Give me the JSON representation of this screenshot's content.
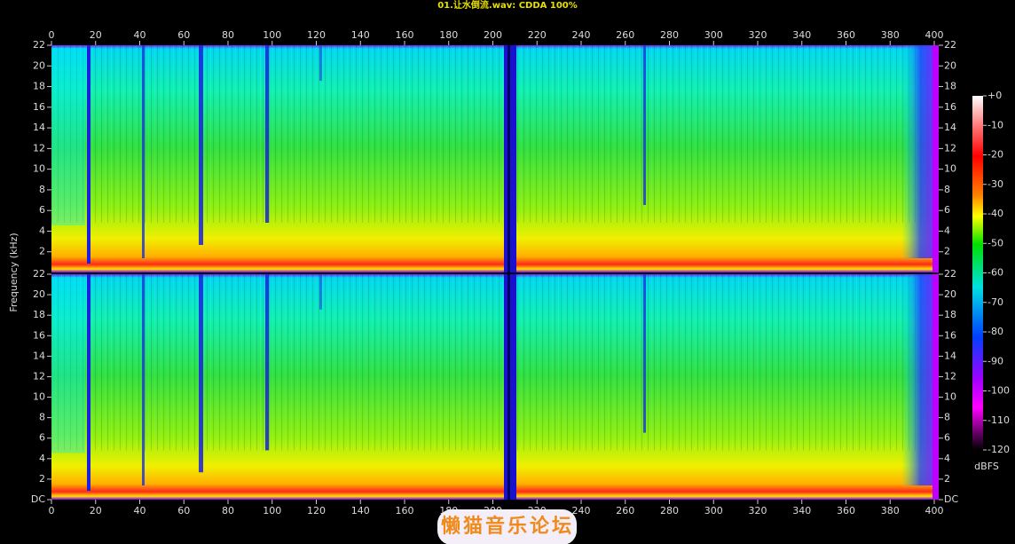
{
  "chart_data": {
    "type": "spectrogram",
    "title": "01.让水倒流.wav: CDDA 100%",
    "ylabel": "Frequency (kHz)",
    "xlim": [
      0,
      400
    ],
    "xticks": [
      0,
      20,
      40,
      60,
      80,
      100,
      120,
      140,
      160,
      180,
      200,
      220,
      240,
      260,
      280,
      300,
      320,
      340,
      360,
      380,
      400
    ],
    "channels": [
      {
        "ylim": [
          0,
          22
        ],
        "yticks": [
          2,
          4,
          6,
          8,
          10,
          12,
          14,
          16,
          18,
          20,
          22
        ]
      },
      {
        "ylim": [
          0,
          22
        ],
        "yticks": [
          {
            "value": 0,
            "label": "DC"
          },
          2,
          4,
          6,
          8,
          10,
          12,
          14,
          16,
          18,
          20,
          22
        ]
      }
    ],
    "colorbar": {
      "label": "dBFS",
      "clim": [
        -120,
        0
      ],
      "ticks": [
        {
          "value": 0,
          "label": "+0"
        },
        -10,
        -20,
        -30,
        -40,
        -50,
        -60,
        -70,
        -80,
        -90,
        -100,
        -110,
        -120
      ]
    }
  },
  "watermark": "懒猫音乐论坛"
}
